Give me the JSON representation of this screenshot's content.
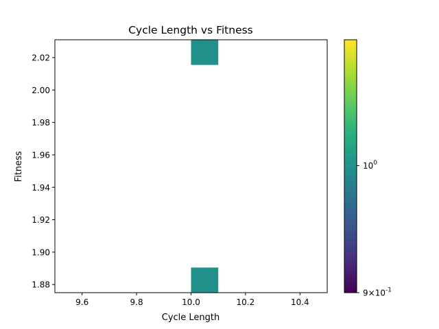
{
  "chart_data": {
    "type": "heatmap",
    "title": "Cycle Length vs Fitness",
    "xlabel": "Cycle Length",
    "ylabel": "Fitness",
    "xlim": [
      9.5,
      10.5
    ],
    "ylim": [
      1.875,
      2.031
    ],
    "xticks": [
      9.6,
      9.8,
      10.0,
      10.2,
      10.4
    ],
    "xtick_labels": [
      "9.6",
      "9.8",
      "10.0",
      "10.2",
      "10.4"
    ],
    "yticks": [
      1.88,
      1.9,
      1.92,
      1.94,
      1.96,
      1.98,
      2.0,
      2.02
    ],
    "ytick_labels": [
      "1.88",
      "1.90",
      "1.92",
      "1.94",
      "1.96",
      "1.98",
      "2.00",
      "2.02"
    ],
    "cells": [
      {
        "x0": 10.0,
        "x1": 10.1,
        "y0": 1.875,
        "y1": 1.8905,
        "count": 1
      },
      {
        "x0": 10.0,
        "x1": 10.1,
        "y0": 2.0155,
        "y1": 2.031,
        "count": 1
      }
    ],
    "colorbar": {
      "scale": "log",
      "colormap": "viridis",
      "range": [
        0.9,
        1.11
      ],
      "tick_values": [
        1.0,
        0.9
      ],
      "tick_labels": [
        "10^0",
        "9×10^-1"
      ]
    },
    "cell_color": "#21918c",
    "grid": false
  }
}
